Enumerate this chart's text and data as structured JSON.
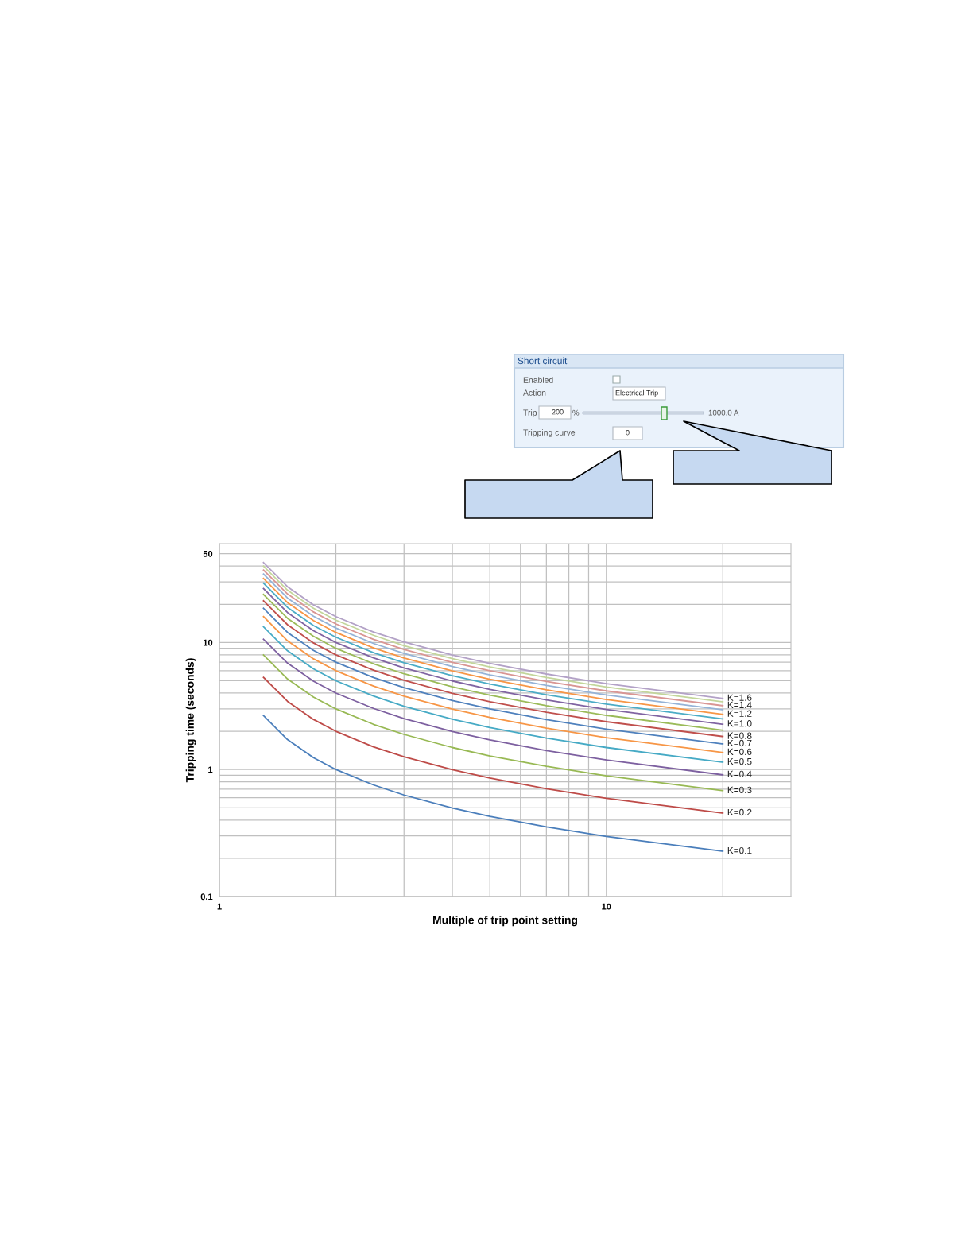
{
  "chart_data": {
    "type": "line",
    "xlabel": "Multiple of trip point setting",
    "ylabel": "Tripping time (seconds)",
    "log": "xy",
    "grid": true,
    "legend": false,
    "marker": "none",
    "line_style": "solid",
    "xlim": [
      1,
      30
    ],
    "ylim": [
      0.1,
      60
    ],
    "xticks": [
      1,
      {
        "value": 2,
        "label": null
      },
      {
        "value": 3,
        "label": null
      },
      {
        "value": 4,
        "label": null
      },
      {
        "value": 5,
        "label": null
      },
      {
        "value": 6,
        "label": null
      },
      {
        "value": 7,
        "label": null
      },
      {
        "value": 8,
        "label": null
      },
      {
        "value": 9,
        "label": null
      },
      10,
      {
        "value": 20,
        "label": null
      }
    ],
    "yticks": [
      0.1,
      {
        "value": 0.2,
        "label": null
      },
      {
        "value": 0.3,
        "label": null
      },
      {
        "value": 0.4,
        "label": null
      },
      {
        "value": 0.5,
        "label": null
      },
      {
        "value": 0.6,
        "label": null
      },
      {
        "value": 0.7,
        "label": null
      },
      {
        "value": 0.8,
        "label": null
      },
      {
        "value": 0.9,
        "label": null
      },
      1,
      {
        "value": 2,
        "label": null
      },
      {
        "value": 3,
        "label": null
      },
      {
        "value": 4,
        "label": null
      },
      {
        "value": 5,
        "label": null
      },
      {
        "value": 6,
        "label": null
      },
      {
        "value": 7,
        "label": null
      },
      {
        "value": 8,
        "label": null
      },
      {
        "value": 9,
        "label": null
      },
      10,
      {
        "value": 20,
        "label": null
      },
      {
        "value": 30,
        "label": null
      },
      {
        "value": 40,
        "label": null
      },
      50
    ],
    "x": [
      1.3,
      1.5,
      1.75,
      2,
      2.5,
      3,
      4,
      5,
      7,
      10,
      20
    ],
    "series": [
      {
        "name": "K=0.1",
        "color": "#4a7ebb",
        "values": [
          2.66,
          1.72,
          1.24,
          1.0,
          0.757,
          0.63,
          0.498,
          0.428,
          0.353,
          0.297,
          0.227
        ]
      },
      {
        "name": "K=0.2",
        "color": "#be4b48",
        "values": [
          5.32,
          3.44,
          2.48,
          2.0,
          1.51,
          1.26,
          0.996,
          0.856,
          0.706,
          0.594,
          0.454
        ]
      },
      {
        "name": "K=0.3",
        "color": "#98b954",
        "values": [
          7.98,
          5.16,
          3.72,
          3.0,
          2.27,
          1.89,
          1.49,
          1.28,
          1.06,
          0.891,
          0.681
        ]
      },
      {
        "name": "K=0.4",
        "color": "#7d60a0",
        "values": [
          10.6,
          6.88,
          4.96,
          4.0,
          3.03,
          2.52,
          1.99,
          1.71,
          1.41,
          1.19,
          0.908
        ]
      },
      {
        "name": "K=0.5",
        "color": "#46aac5",
        "values": [
          13.3,
          8.6,
          6.2,
          5.0,
          3.79,
          3.15,
          2.49,
          2.14,
          1.77,
          1.49,
          1.14
        ]
      },
      {
        "name": "K=0.6",
        "color": "#f79646",
        "values": [
          16.0,
          10.3,
          7.44,
          6.0,
          4.54,
          3.78,
          2.99,
          2.57,
          2.12,
          1.78,
          1.36
        ]
      },
      {
        "name": "K=0.7",
        "color": "#4f81bd",
        "values": [
          18.6,
          12.0,
          8.68,
          7.0,
          5.3,
          4.41,
          3.49,
          3.0,
          2.47,
          2.08,
          1.59
        ]
      },
      {
        "name": "K=0.8",
        "color": "#c0504d",
        "values": [
          21.3,
          13.8,
          9.92,
          8.0,
          6.06,
          5.04,
          3.98,
          3.42,
          2.82,
          2.38,
          1.82
        ]
      },
      {
        "color": "#9bbb59",
        "values": [
          23.9,
          15.5,
          11.2,
          9.0,
          6.81,
          5.67,
          4.48,
          3.85,
          3.18,
          2.67,
          2.04
        ]
      },
      {
        "name": "K=1.0",
        "color": "#8064a2",
        "values": [
          26.6,
          17.2,
          12.4,
          10.0,
          7.57,
          6.3,
          4.98,
          4.28,
          3.53,
          2.97,
          2.27
        ]
      },
      {
        "color": "#4bacc6",
        "values": [
          29.3,
          18.9,
          13.6,
          11.0,
          8.33,
          6.93,
          5.48,
          4.71,
          3.88,
          3.27,
          2.5
        ]
      },
      {
        "name": "K=1.2",
        "color": "#f79646",
        "values": [
          31.9,
          20.6,
          14.9,
          12.0,
          9.08,
          7.56,
          5.98,
          5.14,
          4.24,
          3.56,
          2.72
        ]
      },
      {
        "color": "#95b3d7",
        "values": [
          34.6,
          22.4,
          16.1,
          13.0,
          9.84,
          8.19,
          6.47,
          5.56,
          4.59,
          3.86,
          2.95
        ]
      },
      {
        "name": "K=1.4",
        "color": "#d99694",
        "values": [
          37.2,
          24.1,
          17.4,
          14.0,
          10.6,
          8.82,
          6.97,
          5.99,
          4.94,
          4.16,
          3.18
        ]
      },
      {
        "color": "#c3d69b",
        "values": [
          39.9,
          25.8,
          18.6,
          15.0,
          11.4,
          9.45,
          7.47,
          6.42,
          5.3,
          4.46,
          3.41
        ]
      },
      {
        "name": "K=1.6",
        "color": "#b3a2c7",
        "values": [
          42.6,
          27.5,
          19.8,
          16.0,
          12.1,
          10.1,
          7.97,
          6.85,
          5.65,
          4.75,
          3.63
        ]
      }
    ],
    "annotations": [
      "Short circuit",
      "Enabled",
      "Action",
      "Electrical Trip",
      "Trip",
      "200",
      "%",
      "1000.0 A",
      "Tripping curve",
      "0"
    ]
  }
}
